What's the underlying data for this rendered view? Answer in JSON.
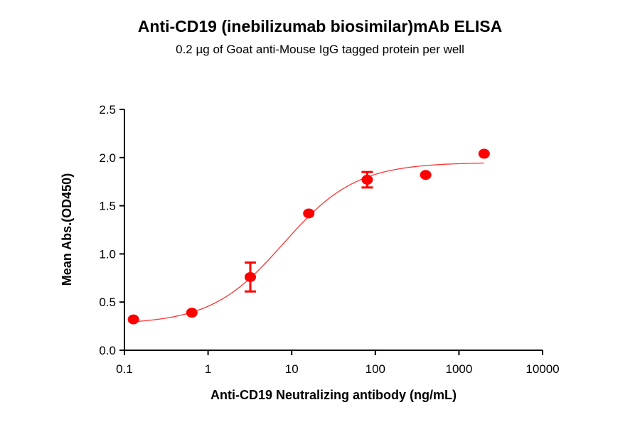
{
  "chart_data": {
    "type": "scatter",
    "title": "Anti-CD19 (inebilizumab biosimilar)mAb ELISA",
    "subtitle": "0.2 µg of Goat anti-Mouse IgG tagged protein per well",
    "xlabel": "Anti-CD19 Neutralizing antibody (ng/mL)",
    "ylabel": "Mean Abs.(OD450)",
    "xscale": "log",
    "xlim": [
      0.1,
      10000
    ],
    "ylim": [
      0,
      2.5
    ],
    "xticks": [
      "0.1",
      "1",
      "10",
      "100",
      "1000",
      "10000"
    ],
    "yticks": [
      "0.0",
      "0.5",
      "1.0",
      "1.5",
      "2.0",
      "2.5"
    ],
    "grid": false,
    "legend": "none",
    "color": "#ff0000",
    "points": [
      {
        "x": 0.128,
        "y": 0.32,
        "err": 0.0
      },
      {
        "x": 0.64,
        "y": 0.39,
        "err": 0.0
      },
      {
        "x": 3.2,
        "y": 0.76,
        "err": 0.15
      },
      {
        "x": 16,
        "y": 1.42,
        "err": 0.0
      },
      {
        "x": 80,
        "y": 1.77,
        "err": 0.08
      },
      {
        "x": 400,
        "y": 1.82,
        "err": 0.0
      },
      {
        "x": 2000,
        "y": 2.04,
        "err": 0.0
      }
    ],
    "fit": {
      "model": "4PL",
      "bottom": 0.27,
      "top": 1.95,
      "ec50": 8,
      "hill": 1.0,
      "x_range": [
        0.128,
        2000
      ]
    }
  }
}
